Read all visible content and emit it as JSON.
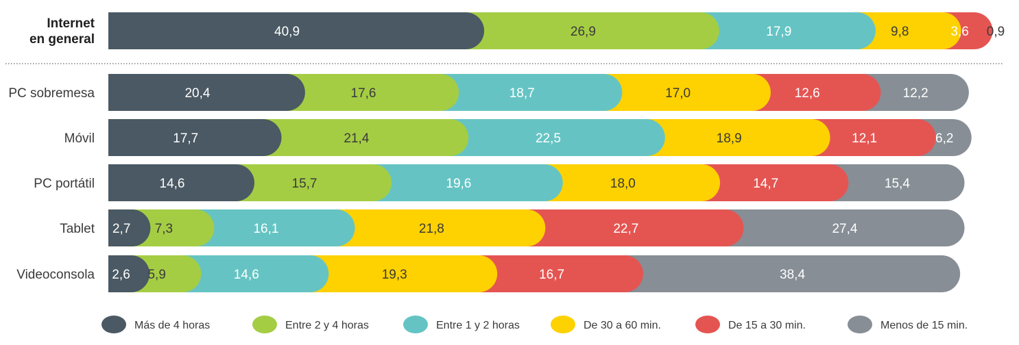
{
  "chart_data": {
    "type": "bar",
    "orientation": "horizontal",
    "stacked": true,
    "title": "",
    "xlabel": "",
    "ylabel": "",
    "xlim": [
      0,
      100
    ],
    "grid": false,
    "legend_position": "bottom",
    "categories": [
      [
        "Internet",
        "en general"
      ],
      [
        "PC sobremesa"
      ],
      [
        "Móvil"
      ],
      [
        "PC portátil"
      ],
      [
        "Tablet"
      ],
      [
        "Videoconsola"
      ]
    ],
    "value_labels": [
      [
        "40,9",
        "26,9",
        "17,9",
        "9,8",
        "3,6",
        "0,9"
      ],
      [
        "20,4",
        "17,6",
        "18,7",
        "17,0",
        "12,6",
        "12,2"
      ],
      [
        "17,7",
        "21,4",
        "22,5",
        "18,9",
        "12,1",
        "6,2"
      ],
      [
        "14,6",
        "15,7",
        "19,6",
        "18,0",
        "14,7",
        "15,4"
      ],
      [
        "2,7",
        "7,3",
        "16,1",
        "21,8",
        "22,7",
        "27,4"
      ],
      [
        "2,6",
        "5,9",
        "14,6",
        "19,3",
        "16,7",
        "38,4"
      ]
    ],
    "series": [
      {
        "name": "Más de 4 horas",
        "color": "#4a5963",
        "values": [
          40.9,
          20.4,
          17.7,
          14.6,
          2.7,
          2.6
        ]
      },
      {
        "name": "Entre 2 y 4 horas",
        "color": "#a5cd44",
        "values": [
          26.9,
          17.6,
          21.4,
          15.7,
          7.3,
          5.9
        ]
      },
      {
        "name": "Entre 1 y 2 horas",
        "color": "#65c4c3",
        "values": [
          17.9,
          18.7,
          22.5,
          19.6,
          16.1,
          14.6
        ]
      },
      {
        "name": "De 30 a 60 min.",
        "color": "#fed100",
        "values": [
          9.8,
          17.0,
          18.9,
          18.0,
          21.8,
          19.3
        ]
      },
      {
        "name": "De 15 a 30 min.",
        "color": "#e45552",
        "values": [
          3.6,
          12.6,
          12.1,
          14.7,
          22.7,
          16.7
        ]
      },
      {
        "name": "Menos de 15 min.",
        "color": "#878e96",
        "values": [
          0.9,
          12.2,
          6.2,
          15.4,
          27.4,
          38.4
        ]
      }
    ]
  }
}
